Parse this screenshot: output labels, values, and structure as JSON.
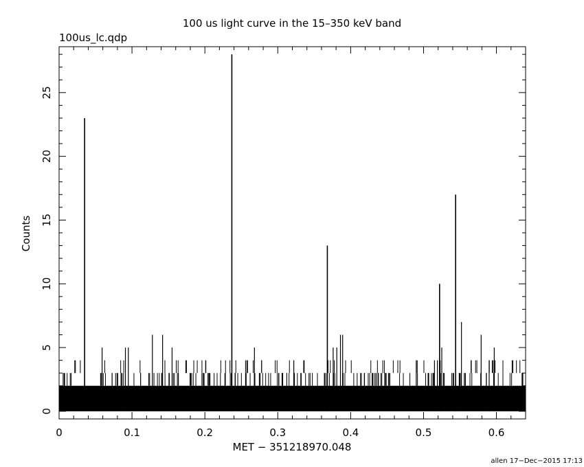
{
  "chart_data": {
    "type": "bar",
    "title": "100 us light curve in the 15–350 keV band",
    "subtitle": "100us_lc.qdp",
    "xlabel": "MET − 351218970.048",
    "ylabel": "Counts",
    "footer": "allen 17−Dec−2015 17:13",
    "xlim": [
      0,
      0.64
    ],
    "ylim": [
      -0.6,
      28.6
    ],
    "x_ticks": [
      0,
      0.1,
      0.2,
      0.3,
      0.4,
      0.5,
      0.6
    ],
    "x_tick_labels": [
      "0",
      "0.1",
      "0.2",
      "0.3",
      "0.4",
      "0.5",
      "0.6"
    ],
    "y_ticks": [
      0,
      5,
      10,
      15,
      20,
      25
    ],
    "y_tick_labels": [
      "0",
      "5",
      "10",
      "15",
      "20",
      "25"
    ],
    "bin_width": 0.0001,
    "background_level": 2,
    "grid": false,
    "series": [
      {
        "x": [
          0.035,
          0.128,
          0.142,
          0.237,
          0.368,
          0.386,
          0.389,
          0.522,
          0.544,
          0.552,
          0.579,
          0.059,
          0.091,
          0.095,
          0.155,
          0.268,
          0.322,
          0.376,
          0.381,
          0.49,
          0.515,
          0.519,
          0.525,
          0.59,
          0.597
        ],
        "values": [
          23,
          6,
          6,
          28,
          13,
          6,
          6,
          10,
          17,
          7,
          6,
          5,
          5,
          5,
          5,
          5,
          4,
          5,
          5,
          4,
          4,
          4,
          5,
          4,
          5
        ]
      }
    ]
  }
}
